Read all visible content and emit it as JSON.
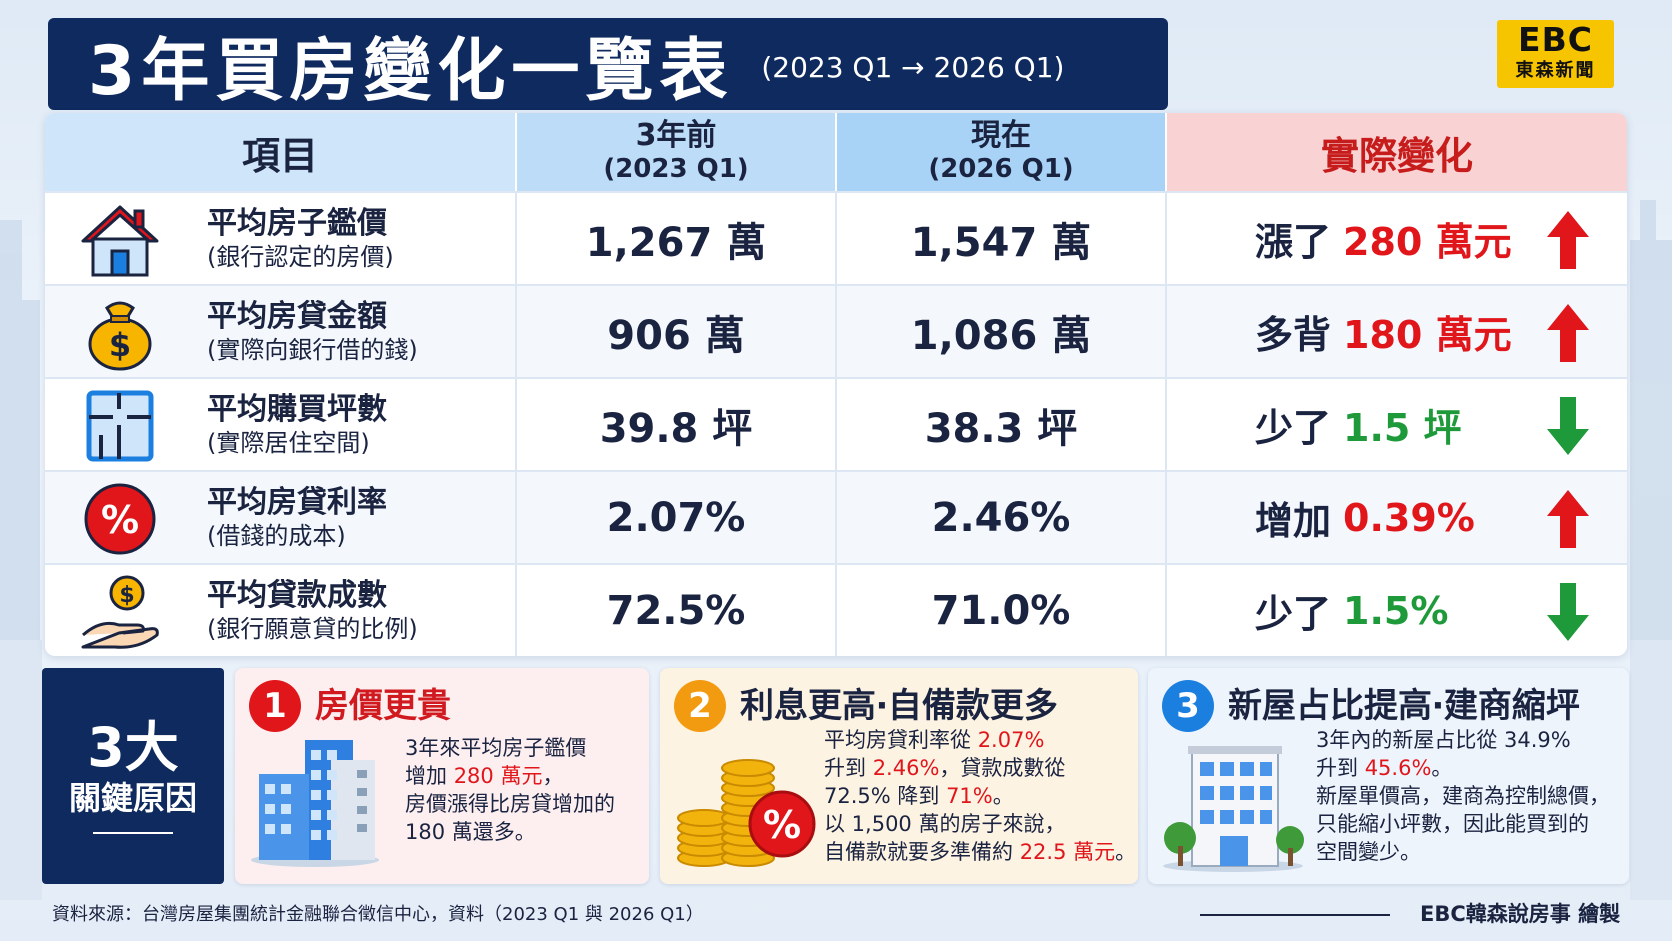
{
  "header": {
    "title": "3年買房變化一覽表",
    "subtitle": "(2023 Q1 → 2026 Q1)"
  },
  "logo": {
    "top": "EBC",
    "bottom": "東森新聞"
  },
  "table": {
    "columns": {
      "item": "項目",
      "before_l1": "3年前",
      "before_l2": "(2023 Q1)",
      "now_l1": "現在",
      "now_l2": "(2026 Q1)",
      "change": "實際變化"
    },
    "rows": [
      {
        "icon": "house-icon",
        "name": "平均房子鑑價",
        "desc": "(銀行認定的房價)",
        "before": "1,267 萬",
        "now": "1,547 萬",
        "change_label": "漲了",
        "change_value": "280 萬元",
        "direction": "up"
      },
      {
        "icon": "money-bag-icon",
        "name": "平均房貸金額",
        "desc": "(實際向銀行借的錢)",
        "before": "906 萬",
        "now": "1,086 萬",
        "change_label": "多背",
        "change_value": "180 萬元",
        "direction": "up"
      },
      {
        "icon": "floor-plan-icon",
        "name": "平均購買坪數",
        "desc": "(實際居住空間)",
        "before": "39.8 坪",
        "now": "38.3 坪",
        "change_label": "少了",
        "change_value": "1.5 坪",
        "direction": "down"
      },
      {
        "icon": "percent-icon",
        "name": "平均房貸利率",
        "desc": "(借錢的成本)",
        "before": "2.07%",
        "now": "2.46%",
        "change_label": "增加",
        "change_value": "0.39%",
        "direction": "up"
      },
      {
        "icon": "hand-coin-icon",
        "name": "平均貸款成數",
        "desc": "(銀行願意貸的比例)",
        "before": "72.5%",
        "now": "71.0%",
        "change_label": "少了",
        "change_value": "1.5%",
        "direction": "down"
      }
    ]
  },
  "reasons": {
    "count": "3大",
    "label": "關鍵原因",
    "cards": [
      {
        "number": "1",
        "title": "房價更貴",
        "lines": [
          {
            "a": "3年來平均房子鑑價",
            "r": "",
            "b": ""
          },
          {
            "a": "增加 ",
            "r": "280 萬元",
            "b": "，"
          },
          {
            "a": "房價漲得比房貸增加的",
            "r": "",
            "b": ""
          },
          {
            "a": "180 萬還多。",
            "r": "",
            "b": ""
          }
        ]
      },
      {
        "number": "2",
        "title": "利息更高‧自備款更多",
        "lines": [
          {
            "a": "平均房貸利率從 ",
            "r": "2.07%",
            "b": ""
          },
          {
            "a": "升到 ",
            "r": "2.46%",
            "b": "，貸款成數從"
          },
          {
            "a": "72.5% 降到 ",
            "r": "71%",
            "b": "。"
          },
          {
            "a": "以 1,500 萬的房子來說，",
            "r": "",
            "b": ""
          },
          {
            "a": "自備款就要多準備約 ",
            "r": "22.5 萬元",
            "b": "。"
          }
        ]
      },
      {
        "number": "3",
        "title": "新屋占比提高‧建商縮坪",
        "lines": [
          {
            "a": "3年內的新屋占比從 34.9%",
            "r": "",
            "b": ""
          },
          {
            "a": "升到 ",
            "r": "45.6%",
            "b": "。"
          },
          {
            "a": "新屋單價高，建商為控制總價，",
            "r": "",
            "b": ""
          },
          {
            "a": "只能縮小坪數，因此能買到的",
            "r": "",
            "b": ""
          },
          {
            "a": "空間變少。",
            "r": "",
            "b": ""
          }
        ]
      }
    ]
  },
  "footer": {
    "source": "資料來源：台灣房屋集團統計金融聯合徵信中心，資料（2023 Q1 與 2026 Q1）",
    "credit": "EBC韓森說房事 繪製"
  },
  "colors": {
    "navy": "#0f2a5e",
    "up_red": "#e0161b",
    "down_green": "#1f9a3a",
    "logo_yellow": "#f7c400"
  }
}
